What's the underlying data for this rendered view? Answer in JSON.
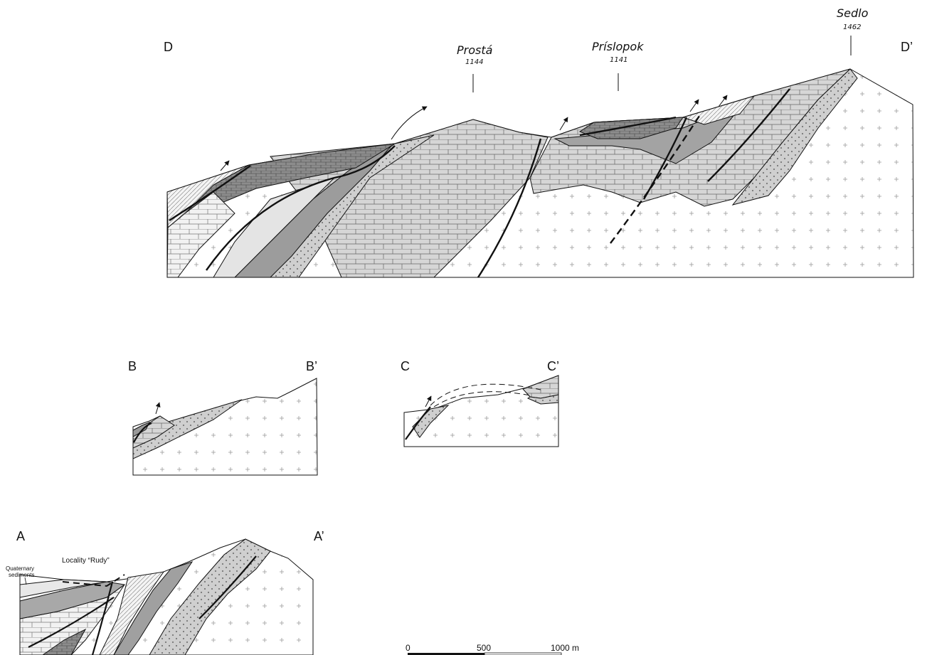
{
  "sections": {
    "d": {
      "left": "D",
      "right": "D’"
    },
    "b": {
      "left": "B",
      "right": "B’"
    },
    "c": {
      "left": "C",
      "right": "C’"
    },
    "a": {
      "left": "A",
      "right": "A’"
    }
  },
  "peaks": [
    {
      "name": "Prostá",
      "elevation": "1144"
    },
    {
      "name": "Príslopok",
      "elevation": "1141"
    },
    {
      "name": "Sedlo",
      "elevation": "1462"
    }
  ],
  "annotations": {
    "locality": "Locality “Rudy”",
    "quaternary_line1": "Quaternary",
    "quaternary_line2": "sediments"
  },
  "scale_bar": {
    "zero": "0",
    "mid": "500",
    "end": "1000 m"
  },
  "colors": {
    "granite": "#ffffff",
    "dark_grey": "#9a9a9a",
    "light_grey": "#d8d8d8",
    "medium_grey": "#bdbdbd",
    "outline": "#111111"
  }
}
